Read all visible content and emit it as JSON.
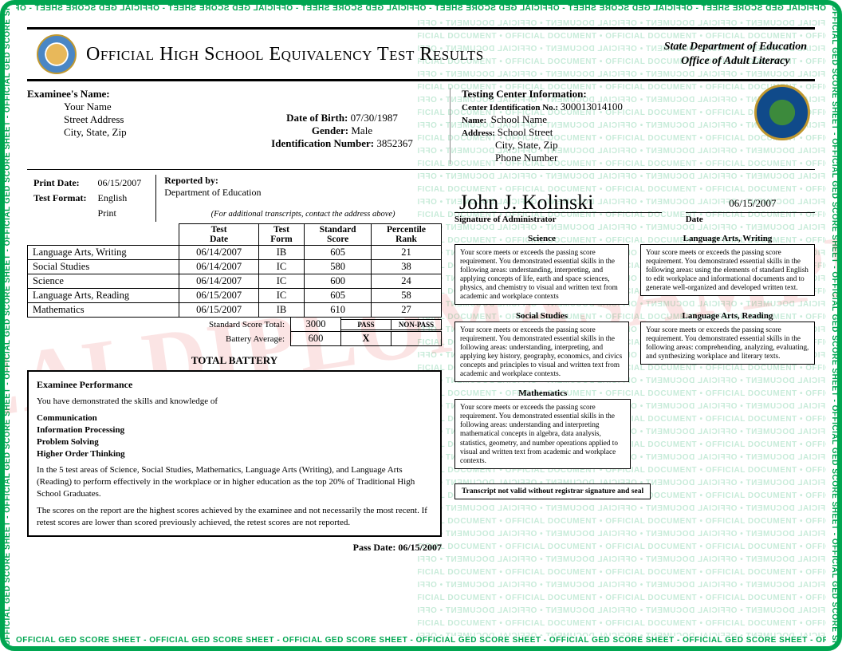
{
  "border_color": "#00a651",
  "watermark_text": "OFFICIAL GED SCORE SHEET - OFFICIAL GED SCORE SHEET - OFFICIAL GED SCORE SHEET - OFFICIAL GED SCORE SHEET - OFFICIAL GED SCORE SHEET - OFFICIAL GED SCORE SHEET - OFFICIAL GED SCORE SHEET",
  "watermark_bg": "OFFICIAL DOCUMENT • OFFICIAL DOCUMENT • OFFICIAL DOCUMENT • OFFICIAL DOCUMENT • OFFICIAL DOCUMENT • OFFICIAL DOCUMENT • OFFICIAL DOCUMENT • OFFICIAL DOCUMENT • OFFICIAL DOCUMENT • OFFICIAL DOCUMENT • OFFICIAL DOCUMENT",
  "sample_text": "REALDIPLOMASAMPLE",
  "title": "Official High School Equivalency Test Results",
  "dept_line1": "State Department of Education",
  "dept_line2": "Office of Adult Literacy",
  "examinee": {
    "label": "Examinee's Name:",
    "name": "Your Name",
    "street": "Street Address",
    "csz": "City, State, Zip"
  },
  "dob_label": "Date of Birth:",
  "dob": "07/30/1987",
  "gender_label": "Gender:",
  "gender": "Male",
  "idnum_label": "Identification Number:",
  "idnum": "3852367",
  "center": {
    "heading": "Testing Center Information:",
    "id_label": "Center Identification No.:",
    "id": "300013014100",
    "name_label": "Name:",
    "name": "School Name",
    "addr_label": "Address:",
    "addr": "School Street",
    "csz": "City, State,  Zip",
    "phone": "Phone Number"
  },
  "print_date_label": "Print Date:",
  "print_date": "06/15/2007",
  "format_label": "Test Format:",
  "format_lang": "English",
  "format_mode": "Print",
  "reported_label": "Reported by:",
  "reported_by": "Department of Education",
  "transcript_note": "(For additional transcripts, contact the address above)",
  "table": {
    "headers": [
      "",
      "Test Date",
      "Test Form",
      "Standard Score",
      "Percentile Rank"
    ],
    "rows": [
      [
        "Language Arts, Writing",
        "06/14/2007",
        "IB",
        "605",
        "21"
      ],
      [
        "Social Studies",
        "06/14/2007",
        "IC",
        "580",
        "38"
      ],
      [
        "Science",
        "06/14/2007",
        "IC",
        "600",
        "24"
      ],
      [
        "Language Arts, Reading",
        "06/15/2007",
        "IC",
        "605",
        "58"
      ],
      [
        "Mathematics",
        "06/15/2007",
        "IB",
        "610",
        "27"
      ]
    ],
    "total_label": "Standard Score Total:",
    "total": "3000",
    "avg_label": "Battery Average:",
    "avg": "600",
    "pass_h": "PASS",
    "nonpass_h": "NON-PASS",
    "pass_mark": "X"
  },
  "battery_title": "TOTAL BATTERY",
  "perf": {
    "heading": "Examinee Performance",
    "intro": "You have demonstrated the skills and knowledge of",
    "skills": [
      "Communication",
      "Information Processing",
      "Problem Solving",
      "Higher Order Thinking"
    ],
    "p1": "In the 5 test areas of Science, Social Studies, Mathematics, Language Arts (Writing), and Language Arts (Reading) to perform effectively in the workplace or in higher education as the top 20% of Traditional High School Graduates.",
    "p2": "The scores on the report are the highest scores achieved by the examinee and not necessarily the most recent. If retest scores are lower than scored previously achieved, the retest scores are not reported."
  },
  "pass_date_label": "Pass Date:",
  "pass_date": "06/15/2007",
  "sig": {
    "value": "John J. Kolinski",
    "label": "Signature of Administrator",
    "date": "06/15/2007",
    "date_label": "Date"
  },
  "feedback": {
    "science": {
      "title": "Science",
      "text": "Your score meets or exceeds the passing score requirement. You demonstrated essential skills in the following areas: understanding, interpreting, and applying concepts of life, earth and space sciences, physics, and chemistry to visual and written text from academic and workplace contexts"
    },
    "writing": {
      "title": "Language Arts, Writing",
      "text": "Your score meets or exceeds the passing score requirement. You demonstrated essential skills in the following areas: using the elements of standard English to edit workplace and informational documents and to generate well-organized and developed written text."
    },
    "social": {
      "title": "Social Studies",
      "text": "Your score meets or exceeds the passing score requirement. You demonstrated essential skills in the following areas: understanding, interpreting, and applying key history, geography, economics, and civics concepts and principles to visual and written text from academic and workplace contexts."
    },
    "reading": {
      "title": "Language Arts, Reading",
      "text": "Your score meets or exceeds the passing score requirement. You demonstrated essential skills in the following areas: comprehending, analyzing, evaluating, and synthesizing workplace and literary texts."
    },
    "math": {
      "title": "Mathematics",
      "text": "Your score meets or exceeds the passing score requirement. You demonstrated essential skills in the following areas: understanding and interpreting mathematical concepts in algebra, data analysis, statistics, geometry, and number operations applied to visual and written text from academic and workplace contexts."
    }
  },
  "disclaimer": "Transcript not valid without registrar signature and seal"
}
